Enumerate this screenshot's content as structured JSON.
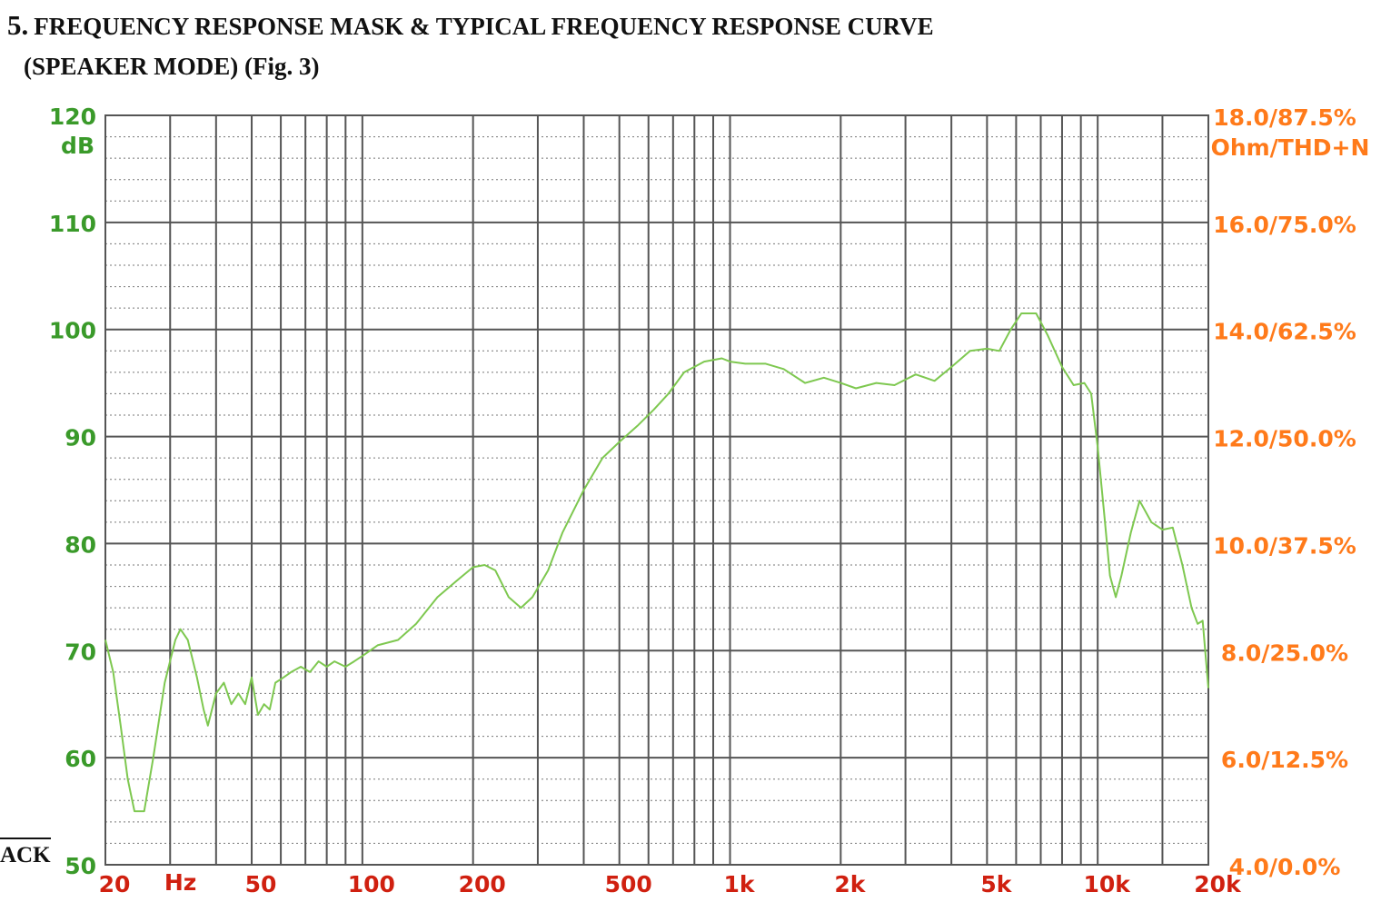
{
  "heading": {
    "number": "5.",
    "title": "FREQUENCY RESPONSE MASK & TYPICAL FREQUENCY RESPONSE CURVE",
    "subtitle": "(SPEAKER MODE)  (Fig. 3)"
  },
  "side_tag": "ACK",
  "colors": {
    "left_axis": "#3a9a2a",
    "right_axis": "#ff7a1a",
    "bottom_axis": "#d02010",
    "curve": "#7ec850",
    "major_grid": "#555555",
    "minor_grid": "#777777",
    "text": "#111111"
  },
  "chart_data": {
    "type": "line",
    "x_scale": "log",
    "xlim": [
      20,
      20000
    ],
    "ylim": [
      50,
      120
    ],
    "grid": true,
    "left_axis": {
      "unit": "dB",
      "ticks": [
        {
          "value": 120,
          "label": "120"
        },
        {
          "value": 110,
          "label": "110"
        },
        {
          "value": 100,
          "label": "100"
        },
        {
          "value": 90,
          "label": "90"
        },
        {
          "value": 80,
          "label": "80"
        },
        {
          "value": 70,
          "label": "70"
        },
        {
          "value": 60,
          "label": "60"
        },
        {
          "value": 50,
          "label": "50"
        }
      ]
    },
    "right_axis": {
      "unit": "Ohm/THD+N",
      "ticks": [
        {
          "value": 120,
          "label": "18.0/87.5%"
        },
        {
          "value": 110,
          "label": "16.0/75.0%"
        },
        {
          "value": 100,
          "label": "14.0/62.5%"
        },
        {
          "value": 90,
          "label": "12.0/50.0%"
        },
        {
          "value": 80,
          "label": "10.0/37.5%"
        },
        {
          "value": 70,
          "label": "8.0/25.0%"
        },
        {
          "value": 60,
          "label": "6.0/12.5%"
        },
        {
          "value": 50,
          "label": "4.0/0.0%"
        }
      ]
    },
    "x_axis": {
      "unit": "Hz",
      "ticks": [
        {
          "value": 20,
          "label": "20"
        },
        {
          "value": 50,
          "label": "50"
        },
        {
          "value": 100,
          "label": "100"
        },
        {
          "value": 200,
          "label": "200"
        },
        {
          "value": 500,
          "label": "500"
        },
        {
          "value": 1000,
          "label": "1k"
        },
        {
          "value": 2000,
          "label": "2k"
        },
        {
          "value": 5000,
          "label": "5k"
        },
        {
          "value": 10000,
          "label": "10k"
        },
        {
          "value": 20000,
          "label": "20k"
        }
      ]
    },
    "series": [
      {
        "points": [
          [
            20,
            71
          ],
          [
            21,
            68
          ],
          [
            22,
            63
          ],
          [
            23,
            58
          ],
          [
            24,
            55
          ],
          [
            25.5,
            55
          ],
          [
            27,
            60
          ],
          [
            29,
            67
          ],
          [
            31,
            71
          ],
          [
            32,
            72
          ],
          [
            33.5,
            71
          ],
          [
            35.5,
            67.5
          ],
          [
            37,
            64.5
          ],
          [
            38,
            63
          ],
          [
            40,
            66
          ],
          [
            42,
            67
          ],
          [
            44,
            65
          ],
          [
            46,
            66
          ],
          [
            48,
            65
          ],
          [
            50,
            67.5
          ],
          [
            52,
            64
          ],
          [
            54,
            65
          ],
          [
            56,
            64.5
          ],
          [
            58,
            67
          ],
          [
            61,
            67.5
          ],
          [
            64,
            68
          ],
          [
            68,
            68.5
          ],
          [
            72,
            68
          ],
          [
            76,
            69
          ],
          [
            80,
            68.5
          ],
          [
            84,
            69
          ],
          [
            90,
            68.5
          ],
          [
            95,
            69
          ],
          [
            100,
            69.5
          ],
          [
            110,
            70.5
          ],
          [
            125,
            71
          ],
          [
            140,
            72.5
          ],
          [
            160,
            75
          ],
          [
            180,
            76.5
          ],
          [
            200,
            77.8
          ],
          [
            215,
            78
          ],
          [
            230,
            77.5
          ],
          [
            250,
            75
          ],
          [
            270,
            74
          ],
          [
            290,
            75
          ],
          [
            320,
            77.5
          ],
          [
            350,
            81
          ],
          [
            400,
            85
          ],
          [
            450,
            88
          ],
          [
            500,
            89.5
          ],
          [
            560,
            91
          ],
          [
            620,
            92.5
          ],
          [
            680,
            94
          ],
          [
            750,
            96
          ],
          [
            850,
            97
          ],
          [
            950,
            97.3
          ],
          [
            1000,
            97
          ],
          [
            1100,
            96.8
          ],
          [
            1250,
            96.8
          ],
          [
            1400,
            96.3
          ],
          [
            1600,
            95
          ],
          [
            1800,
            95.5
          ],
          [
            2000,
            95
          ],
          [
            2200,
            94.5
          ],
          [
            2500,
            95
          ],
          [
            2800,
            94.8
          ],
          [
            3200,
            95.8
          ],
          [
            3600,
            95.2
          ],
          [
            4000,
            96.5
          ],
          [
            4500,
            98
          ],
          [
            5000,
            98.2
          ],
          [
            5400,
            98
          ],
          [
            5800,
            100
          ],
          [
            6200,
            101.5
          ],
          [
            6800,
            101.5
          ],
          [
            7300,
            99.5
          ],
          [
            8000,
            96.5
          ],
          [
            8600,
            94.8
          ],
          [
            9200,
            95
          ],
          [
            9600,
            94
          ],
          [
            10000,
            89
          ],
          [
            10400,
            83
          ],
          [
            10800,
            77
          ],
          [
            11200,
            75
          ],
          [
            11600,
            77
          ],
          [
            12300,
            81
          ],
          [
            13000,
            84
          ],
          [
            14000,
            82
          ],
          [
            15000,
            81.3
          ],
          [
            16000,
            81.5
          ],
          [
            17000,
            78
          ],
          [
            18000,
            74
          ],
          [
            18700,
            72.5
          ],
          [
            19300,
            72.8
          ],
          [
            20000,
            66.5
          ]
        ]
      }
    ]
  }
}
